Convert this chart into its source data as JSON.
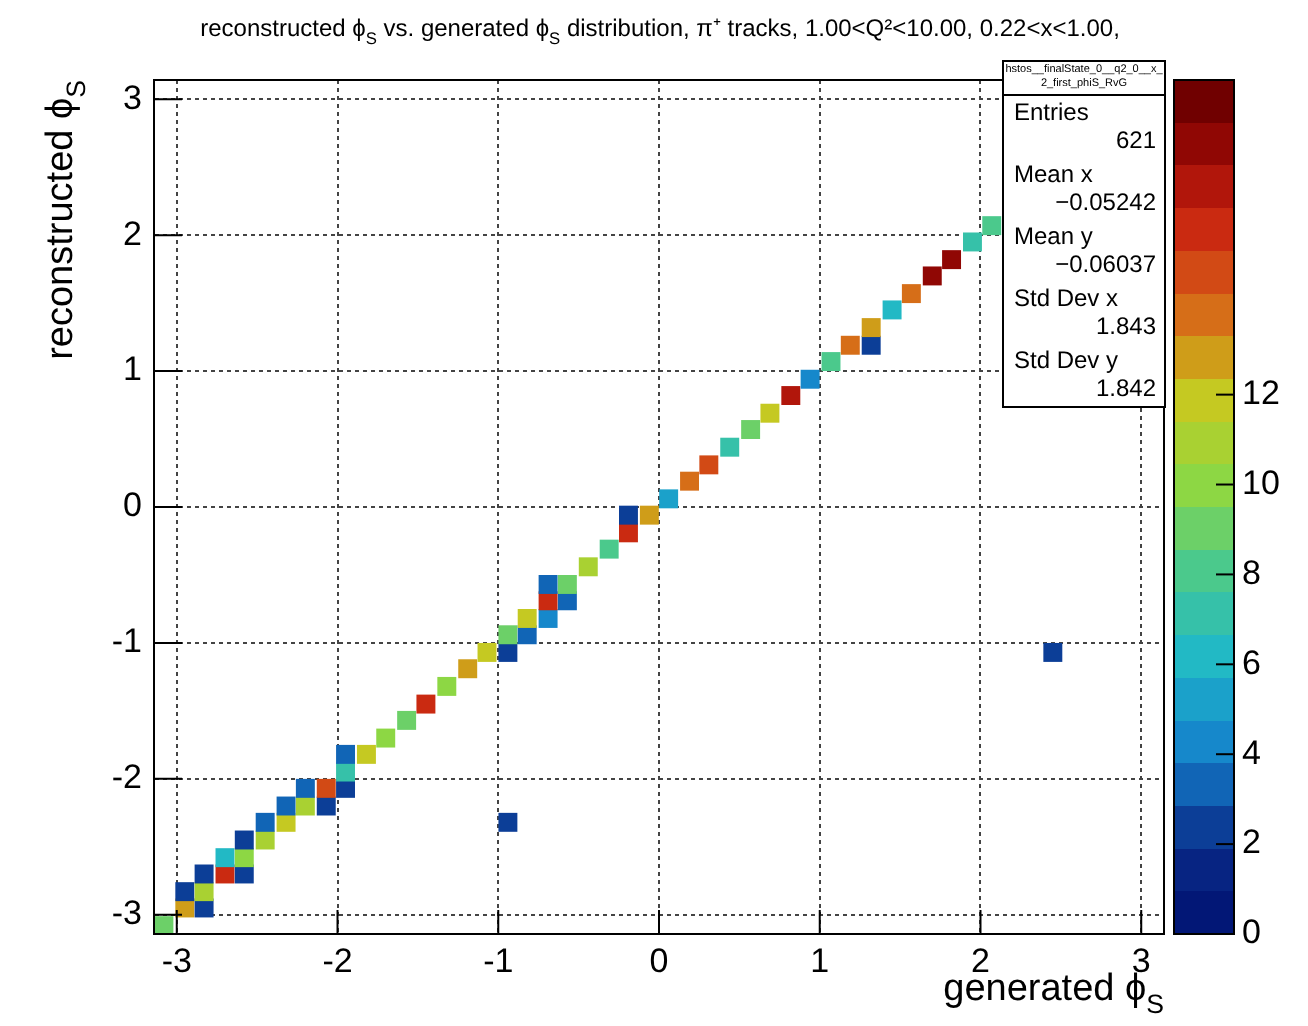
{
  "chart_data": {
    "type": "scatter",
    "title": "reconstructed ϕ$_{S}$ vs. generated ϕ$_{S}$ distribution, π⁺ tracks, 1.00<Q²<10.00, 0.22<x<1.00,",
    "xlabel": "generated ϕ$_{S}$",
    "ylabel": "reconstructed ϕ$_{S}$",
    "marker": "square",
    "grid": true,
    "legend": false,
    "x": [
      -3.08,
      -2.95,
      -2.83,
      -2.95,
      -2.83,
      -2.83,
      -2.7,
      -2.58,
      -2.7,
      -2.58,
      -2.58,
      -2.45,
      -2.45,
      -2.32,
      -2.32,
      -2.2,
      -2.07,
      -2.2,
      -2.07,
      -1.95,
      -1.95,
      -1.95,
      -1.82,
      -1.7,
      -1.57,
      -1.45,
      -1.32,
      -1.19,
      -1.07,
      -0.94,
      -0.94,
      -0.82,
      -0.82,
      -0.69,
      -0.69,
      -0.57,
      -0.69,
      -0.57,
      -0.44,
      -0.31,
      -0.19,
      -0.19,
      -0.06,
      0.06,
      -0.94,
      0.19,
      0.31,
      0.44,
      0.57,
      0.69,
      0.82,
      0.94,
      1.07,
      1.19,
      1.32,
      1.32,
      1.45,
      1.57,
      1.7,
      1.82,
      1.95,
      2.07,
      2.45
    ],
    "values": [
      -3.08,
      -2.95,
      -2.95,
      -2.83,
      -2.83,
      -2.7,
      -2.7,
      -2.7,
      -2.58,
      -2.58,
      -2.45,
      -2.45,
      -2.32,
      -2.32,
      -2.2,
      -2.2,
      -2.2,
      -2.07,
      -2.07,
      -2.07,
      -1.95,
      -1.82,
      -1.82,
      -1.7,
      -1.57,
      -1.45,
      -1.32,
      -1.19,
      -1.07,
      -1.07,
      -0.94,
      -0.94,
      -0.82,
      -0.82,
      -0.69,
      -0.69,
      -0.57,
      -0.57,
      -0.44,
      -0.31,
      -0.19,
      -0.06,
      -0.06,
      0.06,
      -2.32,
      0.19,
      0.31,
      0.44,
      0.57,
      0.69,
      0.82,
      0.94,
      1.07,
      1.19,
      1.19,
      1.32,
      1.45,
      1.57,
      1.7,
      1.82,
      1.95,
      2.07,
      -1.07
    ],
    "cvalues": [
      9,
      13,
      2,
      2,
      11,
      2,
      16,
      2,
      6,
      10,
      2,
      11,
      3,
      12,
      3,
      11,
      2,
      3,
      15,
      2,
      7,
      3,
      12,
      10,
      9,
      16,
      10,
      13,
      12,
      2,
      9,
      3,
      12,
      4,
      16,
      3,
      3,
      9,
      11,
      8,
      16,
      2,
      13,
      5,
      2,
      14,
      15,
      7,
      9,
      12,
      17,
      4,
      8,
      14,
      2,
      13,
      6,
      14,
      18,
      18,
      7,
      8,
      2
    ],
    "xlim": [
      -3.1416,
      3.1416
    ],
    "ylim": [
      -3.1416,
      3.1416
    ],
    "xticks": [
      -3,
      -2,
      -1,
      0,
      1,
      2,
      3
    ],
    "yticks": [
      -3,
      -2,
      -1,
      0,
      1,
      2,
      3
    ],
    "clim": [
      0,
      19
    ],
    "cticks": [
      0,
      2,
      4,
      6,
      8,
      10,
      12
    ],
    "annotations": [
      "hstos__finalState_0__q2_0__x_2_first_phiS_RvG",
      "Entries",
      "621",
      "Mean x",
      "−0.05242",
      "Mean y",
      "−0.06037",
      "Std Dev x",
      "1.843",
      "Std Dev y",
      "1.842"
    ]
  }
}
